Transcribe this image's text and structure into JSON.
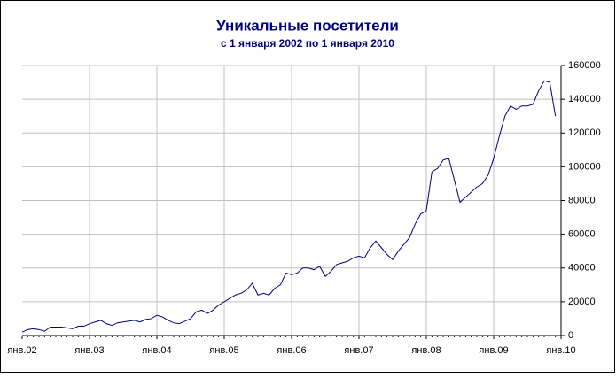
{
  "chart_data": {
    "type": "line",
    "title": "Уникальные посетители",
    "subtitle": "с 1 января 2002 по 1 января 2010",
    "categories": [
      "янв.02",
      null,
      null,
      null,
      null,
      null,
      null,
      null,
      null,
      null,
      null,
      null,
      "янв.03",
      null,
      null,
      null,
      null,
      null,
      null,
      null,
      null,
      null,
      null,
      null,
      "янв.04",
      null,
      null,
      null,
      null,
      null,
      null,
      null,
      null,
      null,
      null,
      null,
      "янв.05",
      null,
      null,
      null,
      null,
      null,
      null,
      null,
      null,
      null,
      null,
      null,
      "янв.06",
      null,
      null,
      null,
      null,
      null,
      null,
      null,
      null,
      null,
      null,
      null,
      "янв.07",
      null,
      null,
      null,
      null,
      null,
      null,
      null,
      null,
      null,
      null,
      null,
      "янв.08",
      null,
      null,
      null,
      null,
      null,
      null,
      null,
      null,
      null,
      null,
      null,
      "янв.09",
      null,
      null,
      null,
      null,
      null,
      null,
      null,
      null,
      null,
      null,
      null,
      "янв.10"
    ],
    "series": [
      {
        "color": "#000080",
        "values": [
          2000,
          3500,
          4000,
          3500,
          2500,
          5000,
          5000,
          5000,
          4500,
          4000,
          5500,
          5500,
          7000,
          8000,
          9000,
          7000,
          6000,
          7500,
          8000,
          8500,
          9000,
          8000,
          9500,
          10000,
          12000,
          11000,
          9000,
          7500,
          7000,
          8500,
          10000,
          14000,
          15000,
          13000,
          15000,
          18000,
          20000,
          22000,
          24000,
          25000,
          27000,
          31000,
          24000,
          25000,
          24000,
          28000,
          30000,
          37000,
          36000,
          37000,
          40000,
          40000,
          39000,
          41000,
          35000,
          38000,
          42000,
          43000,
          44000,
          46000,
          47000,
          46000,
          52000,
          56000,
          52000,
          48000,
          45000,
          50000,
          54000,
          58000,
          66000,
          72000,
          74000,
          97000,
          99000,
          104000,
          105000,
          92000,
          79000,
          82000,
          85000,
          88000,
          90000,
          95000,
          105000,
          118000,
          130000,
          136000,
          134000,
          136000,
          136000,
          137000,
          145000,
          151000,
          150000,
          130000,
          null
        ]
      }
    ],
    "ylim": [
      0,
      160000
    ],
    "yticks": [
      0,
      20000,
      40000,
      60000,
      80000,
      100000,
      120000,
      140000,
      160000
    ],
    "grid": true
  }
}
